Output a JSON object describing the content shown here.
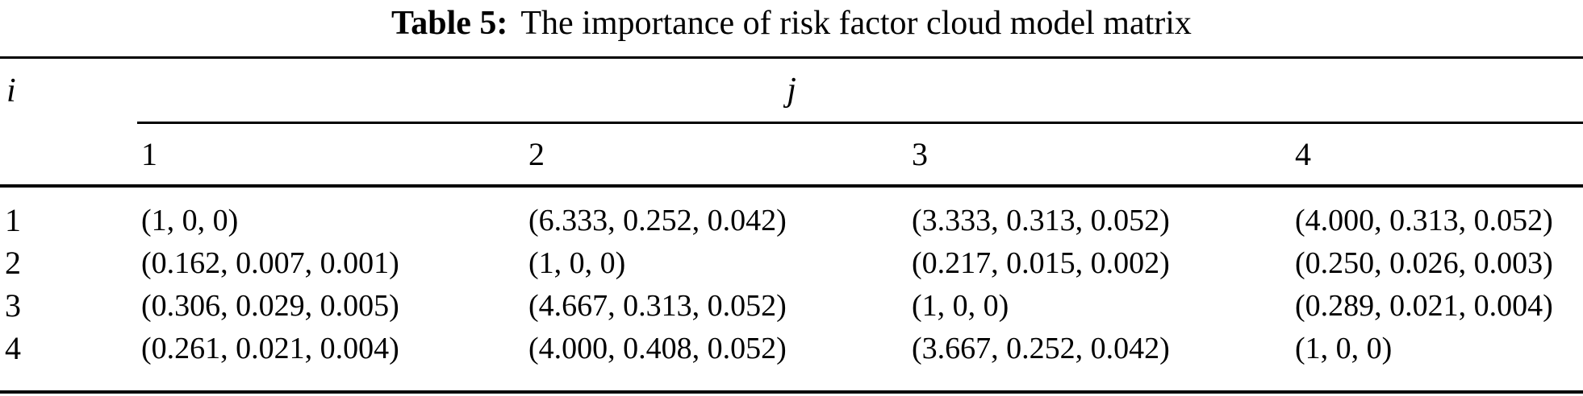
{
  "caption": {
    "label": "Table 5:",
    "text": "The importance of risk factor cloud model matrix"
  },
  "table": {
    "row_index_header": "i",
    "col_index_header": "j",
    "col_headers": [
      "1",
      "2",
      "3",
      "4"
    ],
    "rows": [
      {
        "label": "1",
        "cells": [
          "(1, 0, 0)",
          "(6.333, 0.252, 0.042)",
          "(3.333, 0.313, 0.052)",
          "(4.000, 0.313, 0.052)"
        ]
      },
      {
        "label": "2",
        "cells": [
          "(0.162, 0.007, 0.001)",
          "(1, 0, 0)",
          "(0.217, 0.015, 0.002)",
          "(0.250, 0.026, 0.003)"
        ]
      },
      {
        "label": "3",
        "cells": [
          "(0.306, 0.029, 0.005)",
          "(4.667, 0.313, 0.052)",
          "(1, 0, 0)",
          "(0.289, 0.021, 0.004)"
        ]
      },
      {
        "label": "4",
        "cells": [
          "(0.261, 0.021, 0.004)",
          "(4.000, 0.408, 0.052)",
          "(3.667, 0.252, 0.042)",
          "(1, 0, 0)"
        ]
      }
    ],
    "text_color": "#000000",
    "background_color": "#ffffff"
  },
  "chart_data": {
    "type": "table",
    "title": "Table 5: The importance of risk factor cloud model matrix",
    "row_index_label": "i",
    "col_index_label": "j",
    "columns": [
      "1",
      "2",
      "3",
      "4"
    ],
    "rows": [
      [
        "(1, 0, 0)",
        "(6.333, 0.252, 0.042)",
        "(3.333, 0.313, 0.052)",
        "(4.000, 0.313, 0.052)"
      ],
      [
        "(0.162, 0.007, 0.001)",
        "(1, 0, 0)",
        "(0.217, 0.015, 0.002)",
        "(0.250, 0.026, 0.003)"
      ],
      [
        "(0.306, 0.029, 0.005)",
        "(4.667, 0.313, 0.052)",
        "(1, 0, 0)",
        "(0.289, 0.021, 0.004)"
      ],
      [
        "(0.261, 0.021, 0.004)",
        "(4.000, 0.408, 0.052)",
        "(3.667, 0.252, 0.042)",
        "(1, 0, 0)"
      ]
    ]
  }
}
